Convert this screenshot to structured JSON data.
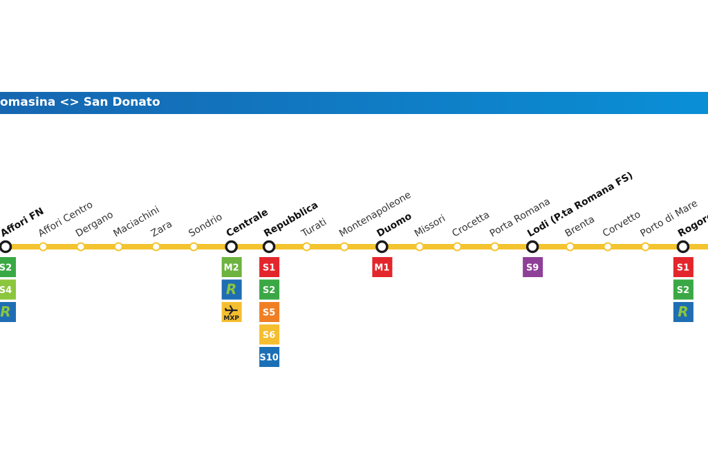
{
  "header": {
    "title": "omasina <> San Donato"
  },
  "cut_label": "a",
  "stations": [
    {
      "name": "Affori FN",
      "interchange": true,
      "badges": [
        {
          "label": "S2",
          "color": "#3aa844"
        },
        {
          "label": "S4",
          "color": "#8cc63f"
        },
        {
          "label": "R",
          "color": "#1f6eb3"
        }
      ]
    },
    {
      "name": "Affori Centro",
      "interchange": false,
      "badges": []
    },
    {
      "name": "Dergano",
      "interchange": false,
      "badges": []
    },
    {
      "name": "Maciachini",
      "interchange": false,
      "badges": []
    },
    {
      "name": "Zara",
      "interchange": false,
      "badges": []
    },
    {
      "name": "Sondrio",
      "interchange": false,
      "badges": []
    },
    {
      "name": "Centrale",
      "interchange": true,
      "badges": [
        {
          "label": "M2",
          "color": "#6db33f"
        },
        {
          "label": "R",
          "color": "#1f6eb3"
        },
        {
          "label": "MXP",
          "color": "#f5be2f"
        }
      ]
    },
    {
      "name": "Repubblica",
      "interchange": true,
      "badges": [
        {
          "label": "S1",
          "color": "#e3262b"
        },
        {
          "label": "S2",
          "color": "#3aa844"
        },
        {
          "label": "S5",
          "color": "#f07f24"
        },
        {
          "label": "S6",
          "color": "#f5be2f"
        },
        {
          "label": "S10",
          "color": "#1a6fb5"
        }
      ]
    },
    {
      "name": "Turati",
      "interchange": false,
      "badges": []
    },
    {
      "name": "Montenapoleone",
      "interchange": false,
      "badges": []
    },
    {
      "name": "Duomo",
      "interchange": true,
      "badges": [
        {
          "label": "M1",
          "color": "#e3262b"
        }
      ]
    },
    {
      "name": "Missori",
      "interchange": false,
      "badges": []
    },
    {
      "name": "Crocetta",
      "interchange": false,
      "badges": []
    },
    {
      "name": "Porta Romana",
      "interchange": false,
      "badges": []
    },
    {
      "name": "Lodi (P.ta Romana FS)",
      "interchange": true,
      "badges": [
        {
          "label": "S9",
          "color": "#8e3f98"
        }
      ]
    },
    {
      "name": "Brenta",
      "interchange": false,
      "badges": []
    },
    {
      "name": "Corvetto",
      "interchange": false,
      "badges": []
    },
    {
      "name": "Porto di Mare",
      "interchange": false,
      "badges": []
    },
    {
      "name": "Rogoredo",
      "interchange": true,
      "badges": [
        {
          "label": "S1",
          "color": "#e3262b"
        },
        {
          "label": "S2",
          "color": "#3aa844"
        },
        {
          "label": "R",
          "color": "#1f6eb3"
        }
      ]
    }
  ]
}
